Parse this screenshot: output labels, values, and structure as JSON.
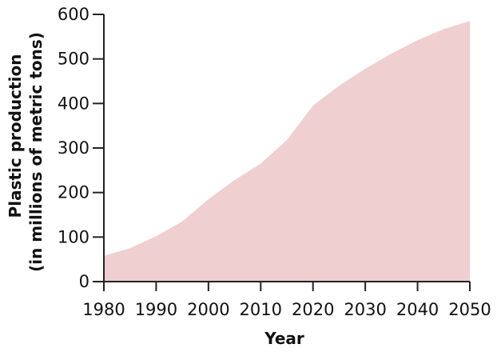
{
  "chart_data": {
    "type": "area",
    "x": [
      1980,
      1985,
      1990,
      1995,
      2000,
      2005,
      2010,
      2015,
      2020,
      2025,
      2030,
      2035,
      2040,
      2045,
      2050
    ],
    "series": [
      {
        "values": [
          58,
          75,
          102,
          135,
          185,
          228,
          265,
          318,
          395,
          440,
          478,
          512,
          542,
          567,
          585
        ]
      }
    ],
    "xlim": [
      1980,
      2050
    ],
    "ylim": [
      0,
      600
    ],
    "x_ticks": [
      "1980",
      "1990",
      "2000",
      "2010",
      "2020",
      "2030",
      "2040",
      "2050"
    ],
    "y_ticks": [
      "0",
      "100",
      "200",
      "300",
      "400",
      "500",
      "600"
    ],
    "xlabel": "Year",
    "ylabel_line1": "Plastic production",
    "ylabel_line2": "(in millions of metric tons)",
    "fill_color": "#efcfcf",
    "axis_color": "#222222",
    "grid": false
  }
}
